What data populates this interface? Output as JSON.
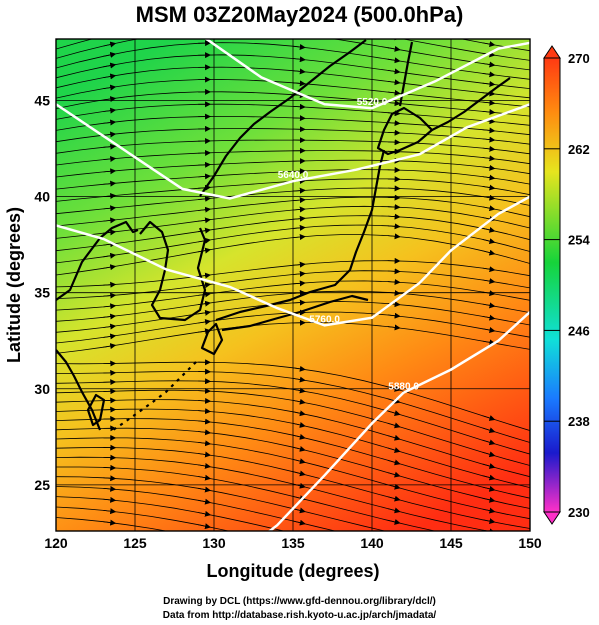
{
  "title": "MSM 03Z20May2024 (500.0hPa)",
  "xlabel": "Longitude (degrees)",
  "ylabel": "Latitude  (degrees)",
  "xticks": [
    "120",
    "125",
    "130",
    "135",
    "140",
    "145",
    "150"
  ],
  "yticks": [
    "25",
    "30",
    "35",
    "40",
    "45"
  ],
  "colorbar": {
    "labels": [
      "270",
      "262",
      "254",
      "246",
      "238",
      "230"
    ],
    "min": 230,
    "max": 270
  },
  "contours": [
    {
      "label": "5520.0",
      "lat_at_lon": [
        [
          129,
          48.5
        ],
        [
          133,
          46.2
        ],
        [
          137,
          44.8
        ],
        [
          140,
          44.6
        ],
        [
          144,
          46.0
        ],
        [
          148,
          47.7
        ],
        [
          150,
          48.0
        ]
      ]
    },
    {
      "label": "5640.0",
      "lat_at_lon": [
        [
          120,
          44.8
        ],
        [
          124,
          42.6
        ],
        [
          128,
          40.4
        ],
        [
          131,
          39.9
        ],
        [
          135,
          40.8
        ],
        [
          139,
          41.4
        ],
        [
          143,
          42.2
        ],
        [
          146,
          43.6
        ],
        [
          150,
          44.8
        ]
      ]
    },
    {
      "label": "5760.0",
      "lat_at_lon": [
        [
          120,
          38.5
        ],
        [
          123,
          37.8
        ],
        [
          127,
          36.2
        ],
        [
          131,
          35.3
        ],
        [
          134,
          34.2
        ],
        [
          137,
          33.3
        ],
        [
          140,
          33.7
        ],
        [
          143,
          35.5
        ],
        [
          145,
          37.2
        ],
        [
          148,
          39.1
        ],
        [
          150,
          40.0
        ]
      ]
    },
    {
      "label": "5880.0",
      "lat_at_lon": [
        [
          131,
          21.0
        ],
        [
          134,
          22.9
        ],
        [
          137,
          25.5
        ],
        [
          140,
          28.2
        ],
        [
          142,
          29.8
        ],
        [
          145,
          31.0
        ],
        [
          148,
          32.5
        ],
        [
          150,
          34.0
        ]
      ]
    }
  ],
  "credits": {
    "line1": "Drawing by DCL (https://www.gfd-dennou.org/library/dcl/)",
    "line2": "Data from http://database.rish.kyoto-u.ac.jp/arch/jmadata/"
  },
  "colors": {
    "cold": "#00cc33",
    "mid": "#e8e81a",
    "warm": "#ff8c00",
    "hot": "#ff2a10",
    "contour": "#ffffff",
    "streamline": "#000000"
  }
}
